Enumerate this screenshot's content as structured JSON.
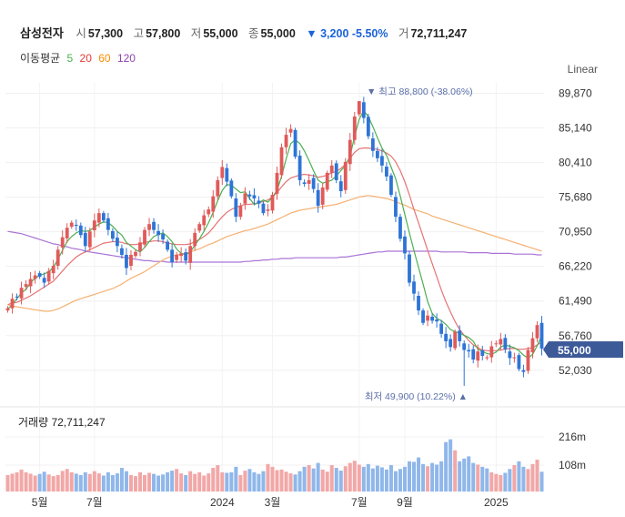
{
  "header": {
    "name": "삼성전자",
    "open_label": "시",
    "open": "57,300",
    "high_label": "고",
    "high": "57,800",
    "low_label": "저",
    "low": "55,000",
    "close_label": "종",
    "close": "55,000",
    "change": "▼ 3,200 -5.50%",
    "volume_label": "거",
    "volume": "72,711,247"
  },
  "moving_average": {
    "title": "이동평균",
    "periods": [
      {
        "label": "5",
        "color": "#4caf50"
      },
      {
        "label": "20",
        "color": "#e53935"
      },
      {
        "label": "60",
        "color": "#fb8c00"
      },
      {
        "label": "120",
        "color": "#8e44ad"
      }
    ]
  },
  "scale_label": "Linear",
  "annotations": {
    "max_label": "▼ 최고 88,800 (-38.06%)",
    "min_label": "최저 49,900 (10.22%) ▲",
    "price_tag": "55,000"
  },
  "volume_panel": {
    "title": "거래량 72,711,247",
    "ticks": [
      "216m",
      "108m"
    ]
  },
  "colors": {
    "up": "#e05a5a",
    "down": "#2e74d6",
    "tag": "#3d5a98",
    "ma5": "#4caf50",
    "ma20": "#e57373",
    "ma60": "#f5b071",
    "ma120": "#a974d6"
  },
  "chart_data": {
    "type": "candlestick",
    "y_ticks": [
      89870,
      85140,
      80410,
      75680,
      70950,
      66220,
      61490,
      56760,
      52030
    ],
    "ylim": [
      47900,
      91300
    ],
    "x_tick_labels": [
      {
        "label": "5월",
        "index": 7
      },
      {
        "label": "7월",
        "index": 19
      },
      {
        "label": "2024",
        "index": 47
      },
      {
        "label": "3월",
        "index": 58
      },
      {
        "label": "7월",
        "index": 77
      },
      {
        "label": "9월",
        "index": 87
      },
      {
        "label": "2025",
        "index": 107
      }
    ],
    "closes": [
      60500,
      61800,
      62000,
      63300,
      63800,
      64500,
      65000,
      64800,
      64000,
      65600,
      66300,
      68500,
      70200,
      71500,
      72200,
      71800,
      70500,
      69000,
      71000,
      72500,
      73500,
      72500,
      71200,
      70000,
      69000,
      67800,
      66000,
      67800,
      68200,
      69500,
      71200,
      72000,
      71200,
      70500,
      69900,
      68500,
      66800,
      67800,
      68000,
      67000,
      69000,
      70800,
      72000,
      73200,
      74000,
      75800,
      78000,
      79800,
      77800,
      75800,
      73000,
      74500,
      76200,
      75800,
      75500,
      74800,
      73500,
      74000,
      76000,
      79000,
      82500,
      84200,
      85000,
      81200,
      78000,
      77500,
      78000,
      76800,
      74500,
      77000,
      79000,
      80000,
      78000,
      76500,
      80500,
      83500,
      86700,
      88800,
      86500,
      84000,
      82000,
      81000,
      80000,
      78500,
      76000,
      73000,
      70000,
      68000,
      64000,
      62500,
      60200,
      58500,
      59500,
      58800,
      58700,
      57000,
      56000,
      55200,
      57300,
      56000,
      54800,
      54600,
      53500,
      54600,
      54000,
      53800,
      55300,
      55700,
      56300,
      54900,
      53700,
      53800,
      52200,
      51800,
      54800,
      56400,
      58200,
      55000
    ],
    "ma5": [
      60400,
      61000,
      61800,
      62600,
      63100,
      64000,
      64600,
      65000,
      65200,
      65500,
      66100,
      67200,
      68400,
      69600,
      70300,
      70800,
      71100,
      71000,
      71100,
      71600,
      72000,
      72300,
      72200,
      71700,
      71000,
      70500,
      69500,
      69000,
      68500,
      68200,
      68800,
      69600,
      70300,
      70600,
      70800,
      70300,
      69600,
      68600,
      68000,
      67800,
      68200,
      69100,
      70000,
      71000,
      72200,
      73600,
      75200,
      76600,
      77400,
      77300,
      76800,
      76300,
      76400,
      75500,
      74700,
      74900,
      75300,
      75000,
      75700,
      76600,
      78500,
      80900,
      83000,
      83500,
      83000,
      82000,
      80700,
      79300,
      78000,
      77600,
      77800,
      78000,
      78600,
      79300,
      80000,
      81300,
      84000,
      86300,
      87500,
      86700,
      85300,
      83800,
      82400,
      81400,
      79800,
      78200,
      75800,
      73300,
      70800,
      68400,
      66100,
      63800,
      61400,
      59800,
      59100,
      58800,
      58300,
      57600,
      57300,
      57100,
      56800,
      56500,
      56000,
      54900,
      54600,
      54300,
      54200,
      54500,
      55200,
      55500,
      55300,
      55100,
      54700,
      54100,
      53700,
      54200,
      55400,
      56800
    ],
    "ma20": [
      61000,
      61200,
      61300,
      61600,
      61900,
      62200,
      62600,
      63000,
      63400,
      63800,
      64200,
      64900,
      65600,
      66300,
      66900,
      67500,
      67900,
      68200,
      68500,
      68800,
      69100,
      69400,
      69500,
      69600,
      69600,
      69500,
      69300,
      69200,
      69200,
      69300,
      69500,
      69600,
      69700,
      69700,
      69600,
      69400,
      69300,
      69200,
      69200,
      69200,
      69300,
      69600,
      69900,
      70300,
      70800,
      71500,
      72300,
      73000,
      73600,
      74000,
      74300,
      74500,
      74700,
      74700,
      74800,
      74900,
      75100,
      75300,
      75700,
      76300,
      77100,
      77800,
      78300,
      78500,
      78700,
      78800,
      78700,
      78600,
      78400,
      78500,
      78700,
      79000,
      79200,
      79600,
      80200,
      81000,
      81800,
      82300,
      82400,
      82400,
      82300,
      82200,
      82000,
      81700,
      81300,
      80500,
      79300,
      77800,
      76000,
      74000,
      72200,
      70300,
      68400,
      66600,
      64800,
      63000,
      61400,
      60000,
      58700,
      57600,
      56800,
      56100,
      55500,
      55100,
      54800,
      54700,
      54700,
      54700,
      54800,
      54900,
      55000,
      55000,
      54900,
      54900,
      55000,
      55100,
      55500,
      55900
    ],
    "ma60": [
      61000,
      60800,
      60700,
      60600,
      60500,
      60400,
      60300,
      60200,
      60100,
      60100,
      60200,
      60400,
      60700,
      61000,
      61300,
      61600,
      61800,
      62000,
      62200,
      62400,
      62600,
      62800,
      63000,
      63200,
      63500,
      63800,
      64200,
      64600,
      64900,
      65200,
      65500,
      65900,
      66300,
      66700,
      67100,
      67400,
      67600,
      67800,
      67900,
      68000,
      68200,
      68400,
      68600,
      68900,
      69200,
      69400,
      69700,
      70000,
      70300,
      70500,
      70700,
      70900,
      71100,
      71200,
      71400,
      71600,
      71800,
      72000,
      72300,
      72600,
      72900,
      73200,
      73500,
      73700,
      73900,
      74000,
      74100,
      74200,
      74300,
      74400,
      74500,
      74600,
      74700,
      74900,
      75100,
      75300,
      75500,
      75700,
      75800,
      75900,
      75800,
      75700,
      75600,
      75500,
      75300,
      75100,
      74800,
      74600,
      74300,
      74000,
      73800,
      73600,
      73400,
      73100,
      72900,
      72700,
      72500,
      72300,
      72100,
      71900,
      71700,
      71500,
      71300,
      71100,
      70900,
      70700,
      70500,
      70300,
      70100,
      69900,
      69700,
      69500,
      69300,
      69100,
      68900,
      68700,
      68500,
      68300
    ],
    "ma120": [
      71000,
      70900,
      70800,
      70700,
      70500,
      70300,
      70100,
      69900,
      69700,
      69500,
      69300,
      69200,
      69000,
      68900,
      68700,
      68600,
      68500,
      68300,
      68200,
      68100,
      68000,
      67900,
      67800,
      67700,
      67600,
      67500,
      67400,
      67300,
      67200,
      67100,
      67000,
      67000,
      66900,
      66900,
      66900,
      66800,
      66800,
      66800,
      66800,
      66800,
      66800,
      66800,
      66800,
      66800,
      66800,
      66800,
      66800,
      66800,
      66800,
      66800,
      66800,
      66800,
      66900,
      66900,
      67000,
      67000,
      67100,
      67100,
      67200,
      67200,
      67300,
      67300,
      67300,
      67400,
      67400,
      67400,
      67400,
      67400,
      67400,
      67400,
      67400,
      67400,
      67400,
      67500,
      67500,
      67600,
      67700,
      67800,
      67900,
      68000,
      68100,
      68200,
      68200,
      68300,
      68300,
      68300,
      68300,
      68300,
      68300,
      68300,
      68300,
      68300,
      68300,
      68300,
      68300,
      68200,
      68200,
      68200,
      68200,
      68200,
      68200,
      68100,
      68100,
      68100,
      68100,
      68100,
      68000,
      68000,
      68000,
      68000,
      68000,
      67900,
      67900,
      67900,
      67900,
      67900,
      67800,
      67800
    ],
    "volume_m": [
      60,
      65,
      70,
      80,
      70,
      65,
      58,
      64,
      72,
      62,
      56,
      60,
      75,
      82,
      70,
      65,
      60,
      70,
      64,
      74,
      66,
      58,
      70,
      60,
      66,
      86,
      74,
      60,
      56,
      70,
      60,
      68,
      64,
      58,
      62,
      70,
      76,
      82,
      66,
      60,
      74,
      64,
      70,
      58,
      66,
      86,
      96,
      70,
      68,
      70,
      90,
      60,
      76,
      82,
      70,
      64,
      74,
      100,
      90,
      78,
      80,
      72,
      66,
      62,
      74,
      90,
      96,
      84,
      104,
      80,
      72,
      96,
      86,
      76,
      92,
      104,
      112,
      98,
      90,
      100,
      84,
      94,
      88,
      80,
      96,
      74,
      82,
      90,
      110,
      108,
      124,
      100,
      92,
      104,
      98,
      110,
      180,
      190,
      150,
      110,
      120,
      128,
      104,
      98,
      90,
      84,
      70,
      64,
      60,
      68,
      82,
      96,
      110,
      90,
      82,
      100,
      116,
      72
    ]
  }
}
